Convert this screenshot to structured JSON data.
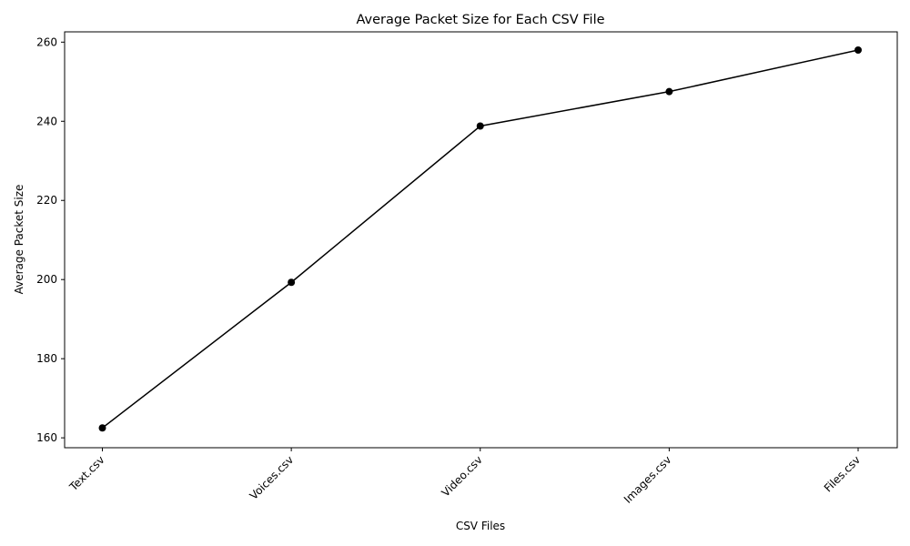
{
  "chart_data": {
    "type": "line",
    "title": "Average Packet Size for Each CSV File",
    "xlabel": "CSV Files",
    "ylabel": "Average Packet Size",
    "categories": [
      "Text.csv",
      "Voices.csv",
      "Video.csv",
      "Images.csv",
      "Files.csv"
    ],
    "values": [
      162.5,
      199.3,
      238.8,
      247.5,
      258.0
    ],
    "ylim": [
      157.5,
      262.6
    ],
    "yticks": [
      160,
      180,
      200,
      220,
      240,
      260
    ],
    "line_color": "#000000",
    "marker": "circle",
    "grid": false
  }
}
